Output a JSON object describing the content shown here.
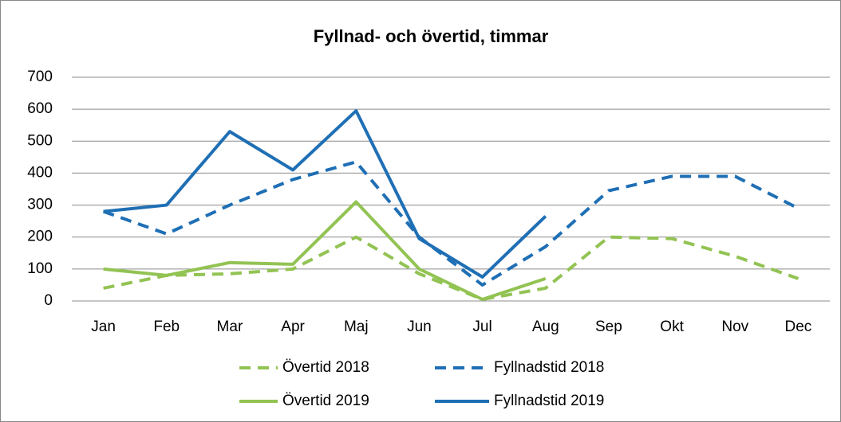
{
  "chart_data": {
    "type": "line",
    "title": "Fyllnad- och övertid, timmar",
    "categories": [
      "Jan",
      "Feb",
      "Mar",
      "Apr",
      "Maj",
      "Jun",
      "Jul",
      "Aug",
      "Sep",
      "Okt",
      "Nov",
      "Dec"
    ],
    "series": [
      {
        "name": "Övertid 2018",
        "color": "#92c353",
        "dashed": true,
        "values": [
          40,
          80,
          85,
          100,
          200,
          85,
          5,
          40,
          200,
          195,
          140,
          70
        ]
      },
      {
        "name": "Fyllnadstid 2018",
        "color": "#1f6fb5",
        "dashed": true,
        "values": [
          280,
          210,
          300,
          380,
          435,
          200,
          50,
          170,
          345,
          390,
          390,
          290
        ]
      },
      {
        "name": "Övertid 2019",
        "color": "#92c353",
        "dashed": false,
        "values": [
          100,
          80,
          120,
          115,
          310,
          100,
          5,
          70,
          null,
          null,
          null,
          null
        ]
      },
      {
        "name": "Fyllnadstid 2019",
        "color": "#1f6fb5",
        "dashed": false,
        "values": [
          280,
          300,
          530,
          410,
          595,
          195,
          75,
          265,
          null,
          null,
          null,
          null
        ]
      }
    ],
    "ylim": [
      0,
      700
    ],
    "yticks": [
      0,
      100,
      200,
      300,
      400,
      500,
      600,
      700
    ],
    "grid": true
  }
}
